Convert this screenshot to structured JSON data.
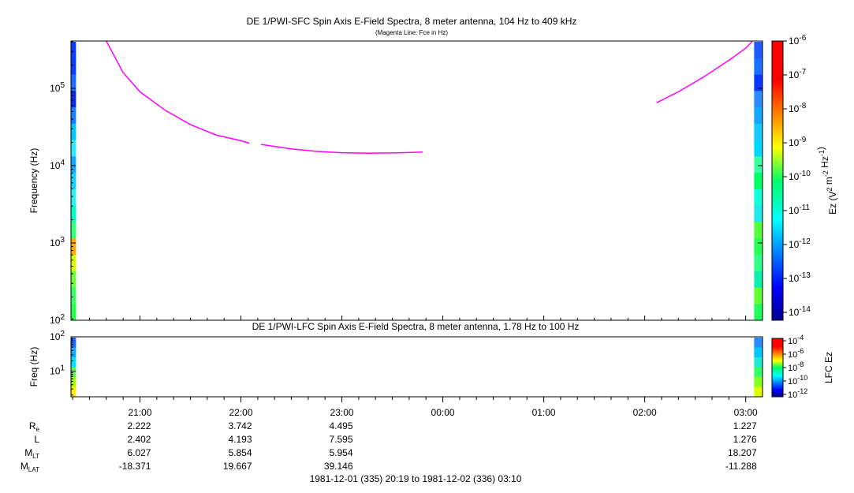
{
  "chart_data": [
    {
      "type": "heatmap",
      "title": "DE 1/PWI-SFC  Spin Axis E-Field Spectra, 8 meter antenna, 104 Hz to 409 kHz",
      "subtitle": "(Magenta Line: Fce in Hz)",
      "ylabel": "Frequency (Hz)",
      "yscale": "log",
      "ylim": [
        100,
        409000
      ],
      "y_ticks": [
        "10^2",
        "10^3",
        "10^4",
        "10^5"
      ],
      "colorbar": {
        "label": "Ez (V^2 m^-2 Hz^-1)",
        "scale": "log",
        "ticks": [
          "10^-14",
          "10^-13",
          "10^-12",
          "10^-11",
          "10^-10",
          "10^-9",
          "10^-8",
          "10^-7",
          "10^-6"
        ]
      },
      "fce_line": {
        "color": "#ff00ff",
        "segments": [
          [
            [
              "20:40",
              409000
            ],
            [
              "20:50",
              160000
            ],
            [
              "21:00",
              90000
            ],
            [
              "21:15",
              52000
            ],
            [
              "21:30",
              34000
            ],
            [
              "21:45",
              25000
            ],
            [
              "22:00",
              21000
            ],
            [
              "22:05",
              19500
            ]
          ],
          [
            [
              "22:12",
              18800
            ],
            [
              "22:30",
              16500
            ],
            [
              "22:45",
              15300
            ],
            [
              "23:00",
              14700
            ],
            [
              "23:15",
              14500
            ],
            [
              "23:30",
              14600
            ],
            [
              "23:45",
              14900
            ],
            [
              "23:48",
              15000
            ]
          ],
          [
            [
              "02:07",
              65000
            ],
            [
              "02:20",
              90000
            ],
            [
              "02:35",
              140000
            ],
            [
              "02:50",
              230000
            ],
            [
              "03:00",
              330000
            ],
            [
              "03:04",
              409000
            ]
          ]
        ]
      },
      "data_coverage": [
        "20:19-20:22",
        "03:05-03:10"
      ]
    },
    {
      "type": "heatmap",
      "title": "DE 1/PWI-LFC  Spin Axis E-Field Spectra, 8 meter antenna, 1.78 Hz to 100 Hz",
      "ylabel": "Freq (Hz)",
      "yscale": "log",
      "ylim": [
        1.78,
        100
      ],
      "y_ticks": [
        "10^1",
        "10^2"
      ],
      "colorbar": {
        "label": "LFC Ez",
        "scale": "log",
        "ticks": [
          "10^-12",
          "10^-10",
          "10^-8",
          "10^-6",
          "10^-4"
        ]
      },
      "data_coverage": [
        "20:19-20:22",
        "03:05-03:10"
      ]
    }
  ],
  "time_axis": {
    "ticks": [
      "21:00",
      "22:00",
      "23:00",
      "00:00",
      "01:00",
      "02:00",
      "03:00"
    ],
    "range_label": "1981-12-01 (335) 20:19 to 1981-12-02 (336) 03:10"
  },
  "ephemeris": {
    "rows": [
      {
        "label": "R",
        "sub": "e",
        "values": [
          "2.222",
          "3.742",
          "4.495",
          "",
          "",
          "",
          "1.227"
        ]
      },
      {
        "label": "L",
        "sub": "",
        "values": [
          "2.402",
          "4.193",
          "7.595",
          "",
          "",
          "",
          "1.276"
        ]
      },
      {
        "label": "M",
        "sub": "LT",
        "values": [
          "6.027",
          "5.854",
          "5.954",
          "",
          "",
          "",
          "18.207"
        ]
      },
      {
        "label": "M",
        "sub": "LAT",
        "values": [
          "-18.371",
          "19.667",
          "39.146",
          "",
          "",
          "",
          "-11.288"
        ]
      }
    ]
  }
}
